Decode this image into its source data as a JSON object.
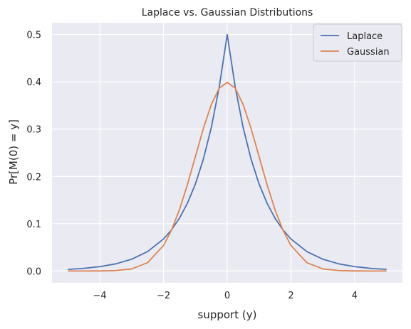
{
  "chart_data": {
    "type": "line",
    "title": "Laplace vs. Gaussian Distributions",
    "xlabel": "support (y)",
    "ylabel": "Pr[M(0) = y]",
    "xlim": [
      -5.5,
      5.5
    ],
    "ylim": [
      -0.025,
      0.525
    ],
    "xticks": [
      -4,
      -2,
      0,
      2,
      4
    ],
    "xtick_labels": [
      "−4",
      "−2",
      "0",
      "2",
      "4"
    ],
    "yticks": [
      0.0,
      0.1,
      0.2,
      0.3,
      0.4,
      0.5
    ],
    "ytick_labels": [
      "0.0",
      "0.1",
      "0.2",
      "0.3",
      "0.4",
      "0.5"
    ],
    "grid": true,
    "legend_position": "top-right",
    "series": [
      {
        "name": "Laplace",
        "color": "#4c72b0",
        "x": [
          -5,
          -4.5,
          -4,
          -3.5,
          -3,
          -2.5,
          -2,
          -1.75,
          -1.5,
          -1.25,
          -1,
          -0.75,
          -0.5,
          -0.25,
          0,
          0.25,
          0.5,
          0.75,
          1,
          1.25,
          1.5,
          1.75,
          2,
          2.5,
          3,
          3.5,
          4,
          4.5,
          5
        ],
        "y": [
          0.0034,
          0.0056,
          0.0092,
          0.0151,
          0.0249,
          0.041,
          0.0677,
          0.0869,
          0.1116,
          0.1433,
          0.1839,
          0.2362,
          0.3033,
          0.3894,
          0.5,
          0.3894,
          0.3033,
          0.2362,
          0.1839,
          0.1433,
          0.1116,
          0.0869,
          0.0677,
          0.041,
          0.0249,
          0.0151,
          0.0092,
          0.0056,
          0.0034
        ]
      },
      {
        "name": "Gaussian",
        "color": "#dd8452",
        "x": [
          -5,
          -4.5,
          -4,
          -3.5,
          -3,
          -2.5,
          -2,
          -1.75,
          -1.5,
          -1.25,
          -1,
          -0.75,
          -0.5,
          -0.25,
          0,
          0.25,
          0.5,
          0.75,
          1,
          1.25,
          1.5,
          1.75,
          2,
          2.5,
          3,
          3.5,
          4,
          4.5,
          5
        ],
        "y": [
          0.0,
          0.0,
          0.0001,
          0.0009,
          0.0044,
          0.0175,
          0.054,
          0.0863,
          0.1295,
          0.1826,
          0.242,
          0.3011,
          0.3521,
          0.3867,
          0.3989,
          0.3867,
          0.3521,
          0.3011,
          0.242,
          0.1826,
          0.1295,
          0.0863,
          0.054,
          0.0175,
          0.0044,
          0.0009,
          0.0001,
          0.0,
          0.0
        ]
      }
    ],
    "colors": {
      "plot_bg": "#eaeaf2",
      "grid": "#ffffff",
      "legend_bg": "#eaeaf2",
      "legend_border": "#cccccc"
    }
  }
}
